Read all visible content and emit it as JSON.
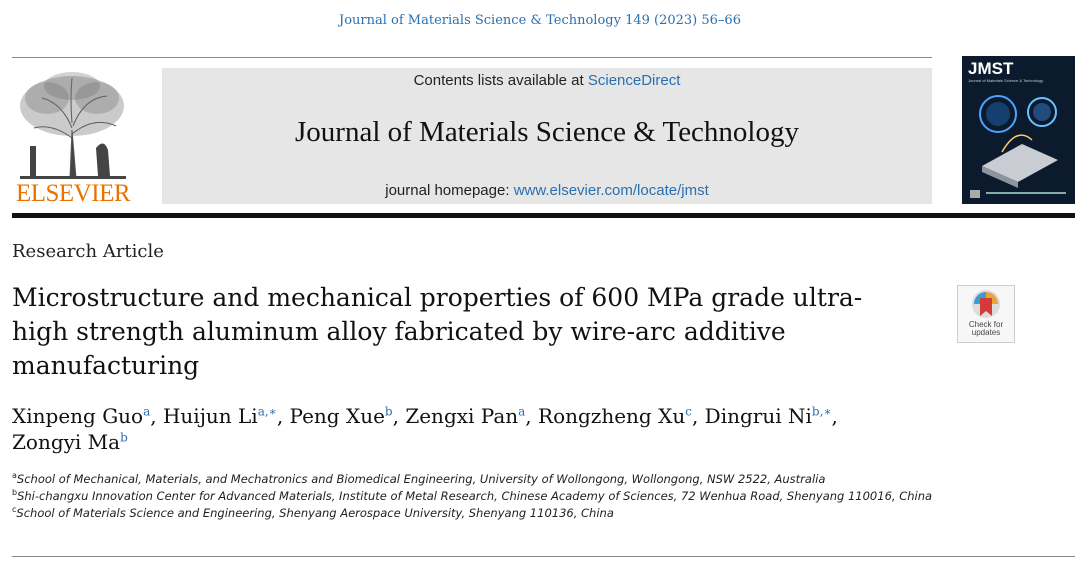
{
  "journal_ref": "Journal of Materials Science & Technology 149 (2023) 56–66",
  "header": {
    "publisher_wordmark": "ELSEVIER",
    "contents_prefix": "Contents lists available at ",
    "contents_link": "ScienceDirect",
    "journal_title": "Journal of Materials Science & Technology",
    "homepage_prefix": "journal homepage: ",
    "homepage_link": "www.elsevier.com/locate/jmst",
    "cover_title": "JMST",
    "cover_subtitle": "Journal of Materials Science & Technology"
  },
  "article": {
    "type": "Research Article",
    "title": "Microstructure and mechanical properties of 600 MPa grade ultra-high strength aluminum alloy fabricated by wire-arc additive manufacturing",
    "check_updates_line1": "Check for",
    "check_updates_line2": "updates"
  },
  "authors": [
    {
      "name": "Xinpeng Guo",
      "sup": "a",
      "sep": ", "
    },
    {
      "name": "Huijun Li",
      "sup": "a,∗",
      "sep": ", "
    },
    {
      "name": "Peng Xue",
      "sup": "b",
      "sep": ", "
    },
    {
      "name": "Zengxi Pan",
      "sup": "a",
      "sep": ", "
    },
    {
      "name": "Rongzheng Xu",
      "sup": "c",
      "sep": ", "
    },
    {
      "name": "Dingrui Ni",
      "sup": "b,∗",
      "sep": ", "
    },
    {
      "name": "Zongyi Ma",
      "sup": "b",
      "sep": ""
    }
  ],
  "affiliations": [
    {
      "sup": "a",
      "text": "School of Mechanical, Materials, and Mechatronics and Biomedical Engineering, University of Wollongong, Wollongong, NSW 2522, Australia"
    },
    {
      "sup": "b",
      "text": "Shi-changxu Innovation Center for Advanced Materials, Institute of Metal Research, Chinese Academy of Sciences, 72 Wenhua Road, Shenyang 110016, China"
    },
    {
      "sup": "c",
      "text": "School of Materials Science and Engineering, Shenyang Aerospace University, Shenyang 110136, China"
    }
  ],
  "colors": {
    "link": "#2a6fb0",
    "elsevier_orange": "#e87200",
    "banner_bg": "#e6e6e6"
  },
  "icons": {
    "publisher_logo": "elsevier-tree-logo",
    "cover": "journal-cover-image",
    "crossmark": "check-for-updates-icon"
  }
}
